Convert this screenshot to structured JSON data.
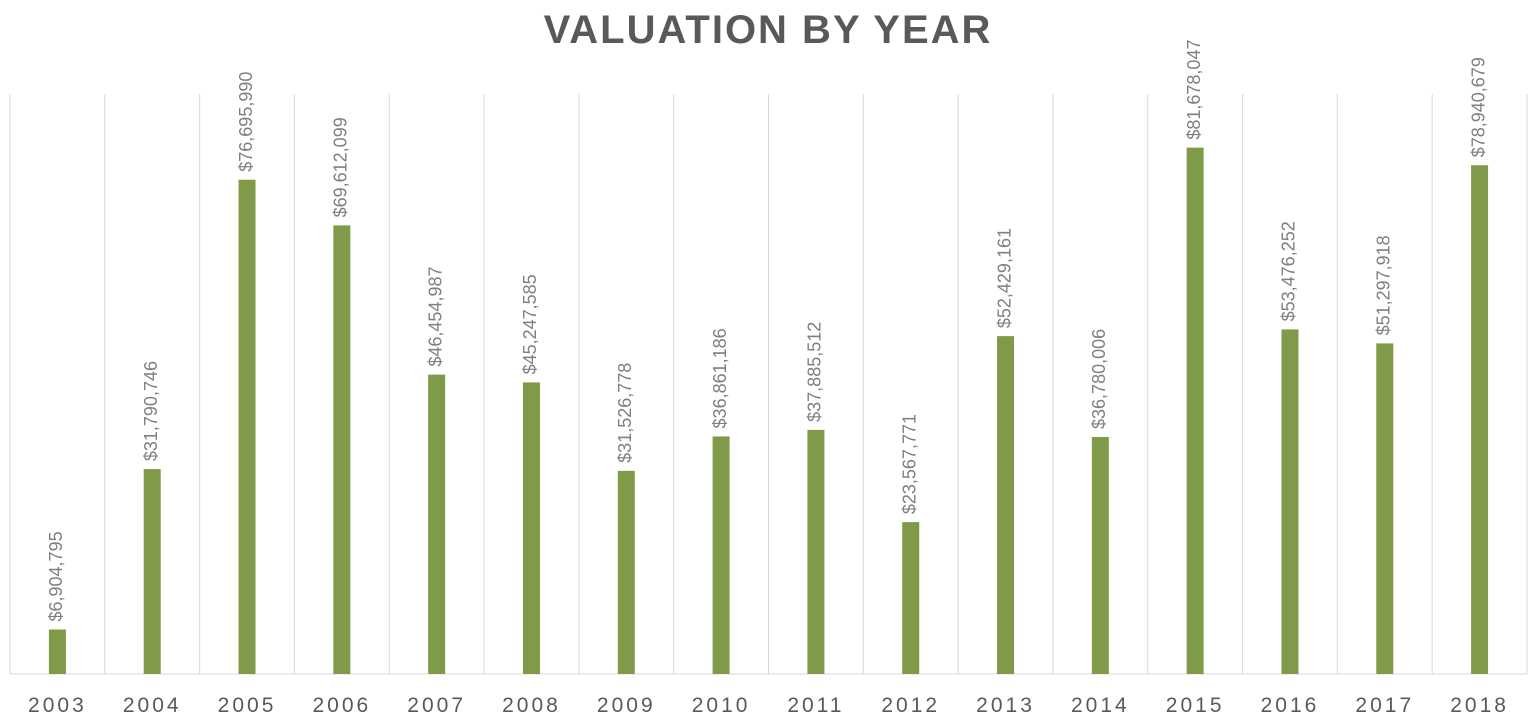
{
  "chart_data": {
    "type": "bar",
    "title": "VALUATION BY YEAR",
    "categories": [
      "2003",
      "2004",
      "2005",
      "2006",
      "2007",
      "2008",
      "2009",
      "2010",
      "2011",
      "2012",
      "2013",
      "2014",
      "2015",
      "2016",
      "2017",
      "2018"
    ],
    "values": [
      6904795,
      31790746,
      76695990,
      69612099,
      46454987,
      45247585,
      31526778,
      36861186,
      37885512,
      23567771,
      52429161,
      36780006,
      81678047,
      53476252,
      51297918,
      78940679
    ],
    "value_labels": [
      "$6,904,795",
      "$31,790,746",
      "$76,695,990",
      "$69,612,099",
      "$46,454,987",
      "$45,247,585",
      "$31,526,778",
      "$36,861,186",
      "$37,885,512",
      "$23,567,771",
      "$52,429,161",
      "$36,780,006",
      "$81,678,047",
      "$53,476,252",
      "$51,297,918",
      "$78,940,679"
    ],
    "color": "#7f9a48",
    "ylim": [
      0,
      90000000
    ]
  }
}
